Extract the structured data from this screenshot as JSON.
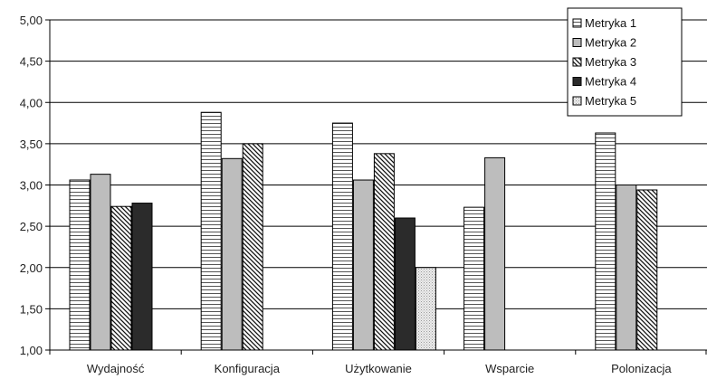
{
  "chart_data": {
    "type": "bar",
    "categories": [
      "Wydajność",
      "Konfiguracja",
      "Użytkowanie",
      "Wsparcie",
      "Polonizacja"
    ],
    "series": [
      {
        "name": "Metryka 1",
        "values": [
          3.06,
          3.88,
          3.75,
          2.73,
          3.63
        ],
        "pattern": "hlines",
        "color": "#ffffff"
      },
      {
        "name": "Metryka 2",
        "values": [
          3.13,
          3.32,
          3.06,
          3.33,
          3.0
        ],
        "pattern": "solid",
        "color": "#bdbdbd"
      },
      {
        "name": "Metryka 3",
        "values": [
          2.74,
          3.5,
          3.38,
          null,
          2.94
        ],
        "pattern": "diag",
        "color": "#ffffff"
      },
      {
        "name": "Metryka 4",
        "values": [
          2.78,
          null,
          2.6,
          null,
          null
        ],
        "pattern": "solid",
        "color": "#2b2b2b"
      },
      {
        "name": "Metryka 5",
        "values": [
          null,
          null,
          2.0,
          null,
          null
        ],
        "pattern": "dots",
        "color": "#e6e6e6"
      }
    ],
    "y_ticks": [
      "1,00",
      "1,50",
      "2,00",
      "2,50",
      "3,00",
      "3,50",
      "4,00",
      "4,50",
      "5,00"
    ],
    "ylim": [
      1.0,
      5.0
    ],
    "grid": true,
    "legend_position": "top-right",
    "title": "",
    "xlabel": "",
    "ylabel": ""
  }
}
